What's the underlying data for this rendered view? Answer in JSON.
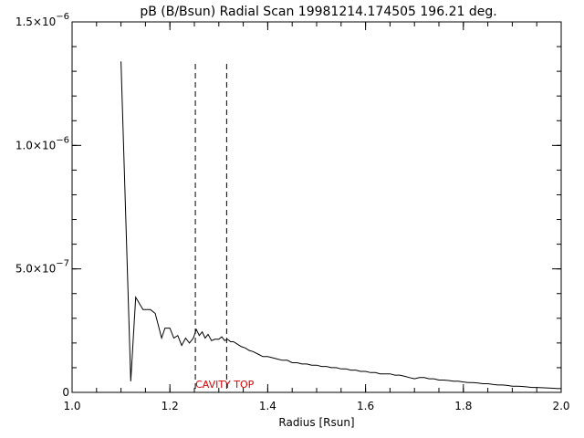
{
  "chart_data": {
    "type": "line",
    "title": "pB (B/Bsun) Radial Scan 19981214.174505 196.21 deg.",
    "xlabel": "Radius [Rsun]",
    "ylabel": "",
    "xlim": [
      1.0,
      2.0
    ],
    "ylim": [
      0,
      1.5e-06
    ],
    "grid": false,
    "x_ticks": [
      {
        "value": 1.0,
        "label": "1.0"
      },
      {
        "value": 1.2,
        "label": "1.2"
      },
      {
        "value": 1.4,
        "label": "1.4"
      },
      {
        "value": 1.6,
        "label": "1.6"
      },
      {
        "value": 1.8,
        "label": "1.8"
      },
      {
        "value": 2.0,
        "label": "2.0"
      }
    ],
    "y_ticks": [
      {
        "value": 0,
        "mantissa": "0",
        "exponent": ""
      },
      {
        "value": 5e-07,
        "mantissa": "5.0×10",
        "exponent": "−7"
      },
      {
        "value": 1e-06,
        "mantissa": "1.0×10",
        "exponent": "−6"
      },
      {
        "value": 1.5e-06,
        "mantissa": "1.5×10",
        "exponent": "−6"
      }
    ],
    "series": [
      {
        "color": "#000000",
        "x": [
          1.1,
          1.12,
          1.13,
          1.145,
          1.16,
          1.17,
          1.183,
          1.19,
          1.2,
          1.208,
          1.216,
          1.224,
          1.232,
          1.24,
          1.248,
          1.254,
          1.26,
          1.266,
          1.272,
          1.278,
          1.285,
          1.292,
          1.3,
          1.306,
          1.312,
          1.318,
          1.324,
          1.33,
          1.338,
          1.346,
          1.354,
          1.362,
          1.37,
          1.38,
          1.39,
          1.4,
          1.41,
          1.42,
          1.43,
          1.44,
          1.45,
          1.46,
          1.47,
          1.48,
          1.49,
          1.5,
          1.51,
          1.52,
          1.53,
          1.54,
          1.55,
          1.56,
          1.57,
          1.58,
          1.59,
          1.6,
          1.61,
          1.62,
          1.63,
          1.64,
          1.65,
          1.66,
          1.67,
          1.68,
          1.69,
          1.7,
          1.71,
          1.72,
          1.73,
          1.74,
          1.75,
          1.76,
          1.77,
          1.78,
          1.79,
          1.8,
          1.81,
          1.82,
          1.83,
          1.84,
          1.85,
          1.86,
          1.87,
          1.88,
          1.89,
          1.9,
          1.91,
          1.92,
          1.93,
          1.94,
          1.95,
          1.96,
          1.97,
          1.98,
          1.99,
          2.0
        ],
        "y": [
          1.34e-06,
          4.5e-08,
          3.85e-07,
          3.35e-07,
          3.35e-07,
          3.2e-07,
          2.2e-07,
          2.6e-07,
          2.6e-07,
          2.2e-07,
          2.3e-07,
          1.9e-07,
          2.2e-07,
          2e-07,
          2.2e-07,
          2.55e-07,
          2.3e-07,
          2.45e-07,
          2.2e-07,
          2.35e-07,
          2.1e-07,
          2.15e-07,
          2.15e-07,
          2.25e-07,
          2.1e-07,
          2.15e-07,
          2.05e-07,
          2.05e-07,
          1.95e-07,
          1.85e-07,
          1.8e-07,
          1.7e-07,
          1.65e-07,
          1.55e-07,
          1.45e-07,
          1.45e-07,
          1.4e-07,
          1.35e-07,
          1.3e-07,
          1.3e-07,
          1.2e-07,
          1.2e-07,
          1.15e-07,
          1.15e-07,
          1.1e-07,
          1.1e-07,
          1.05e-07,
          1.05e-07,
          1e-07,
          1e-07,
          9.5e-08,
          9.5e-08,
          9e-08,
          9e-08,
          8.5e-08,
          8.5e-08,
          8e-08,
          8e-08,
          7.5e-08,
          7.5e-08,
          7.5e-08,
          7e-08,
          7e-08,
          6.5e-08,
          6e-08,
          5.5e-08,
          6e-08,
          6e-08,
          5.5e-08,
          5.5e-08,
          5e-08,
          5e-08,
          4.8e-08,
          4.5e-08,
          4.5e-08,
          4.2e-08,
          4e-08,
          4e-08,
          3.8e-08,
          3.5e-08,
          3.5e-08,
          3.2e-08,
          3e-08,
          3e-08,
          2.8e-08,
          2.5e-08,
          2.5e-08,
          2.4e-08,
          2.2e-08,
          2e-08,
          2e-08,
          1.9e-08,
          1.8e-08,
          1.7e-08,
          1.6e-08,
          1.5e-08
        ]
      }
    ],
    "vlines": [
      {
        "x": 1.252,
        "y_top": 1.33e-06,
        "style": "dashed",
        "color": "#000000"
      },
      {
        "x": 1.316,
        "y_top": 1.33e-06,
        "style": "dashed",
        "color": "#000000"
      }
    ],
    "annotations": [
      {
        "text": "CAVITY TOP",
        "x": 1.252,
        "y": 0,
        "color": "#dd0000"
      }
    ]
  }
}
